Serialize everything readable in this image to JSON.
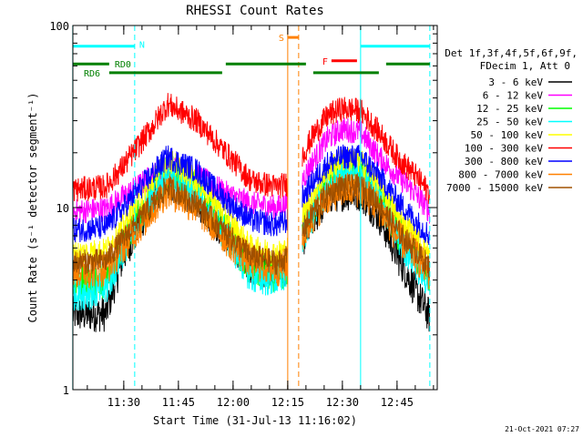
{
  "chart_data": {
    "type": "line",
    "title": "RHESSI Count Rates",
    "xlabel": "Start Time (31-Jul-13 11:16:02)",
    "ylabel": "Count Rate (s⁻¹ detector segment⁻¹)",
    "yscale": "log",
    "ylim": [
      1,
      100
    ],
    "xlim": [
      "11:16:02",
      "12:56:02"
    ],
    "x_ticks": [
      "11:30",
      "11:45",
      "12:00",
      "12:15",
      "12:30",
      "12:45"
    ],
    "y_tick_labels": [
      "1",
      "10",
      "100"
    ],
    "grid": false,
    "legend_placement": "right",
    "legend_header": [
      "Det 1f,3f,4f,5f,6f,9f,",
      "FDecim 1, Att 0"
    ],
    "footer_date": "21-Oct-2021 07:27",
    "series": [
      {
        "name": "3 - 6 keV",
        "color": "#000000",
        "x": [
          "11:16",
          "11:25",
          "11:30",
          "11:38",
          "11:42",
          "11:50",
          "11:58",
          "12:05",
          "12:12",
          "12:15",
          "12:22",
          "12:26",
          "12:30",
          "12:35",
          "12:40",
          "12:45",
          "12:50",
          "12:54"
        ],
        "y": [
          2.6,
          2.6,
          5.5,
          11,
          14,
          11,
          7,
          4.8,
          4.3,
          4.8,
          8.5,
          11.5,
          12,
          12,
          9,
          5.5,
          3.5,
          2.5
        ]
      },
      {
        "name": "6 - 12 keV",
        "color": "#ff00ff",
        "x": [
          "11:16",
          "11:25",
          "11:30",
          "11:38",
          "11:42",
          "11:50",
          "11:58",
          "12:05",
          "12:12",
          "12:15",
          "12:22",
          "12:26",
          "12:30",
          "12:35",
          "12:40",
          "12:45",
          "12:50",
          "12:54"
        ],
        "y": [
          9.5,
          9.8,
          11.5,
          15,
          17,
          15,
          12,
          10.5,
          10,
          10.5,
          18,
          24,
          27,
          26,
          19,
          15,
          12,
          9.5
        ]
      },
      {
        "name": "12 - 25 keV",
        "color": "#00ff00",
        "x": [
          "11:16",
          "11:25",
          "11:30",
          "11:38",
          "11:42",
          "11:50",
          "11:58",
          "12:05",
          "12:12",
          "12:15",
          "12:22",
          "12:26",
          "12:30",
          "12:35",
          "12:40",
          "12:45",
          "12:50",
          "12:54"
        ],
        "y": [
          3.8,
          4.0,
          6.5,
          12,
          16,
          12.5,
          7.5,
          4.5,
          4.3,
          4.6,
          10,
          14,
          16,
          16,
          12,
          7.5,
          5.5,
          4.0
        ]
      },
      {
        "name": "25 - 50 keV",
        "color": "#00ffff",
        "x": [
          "11:16",
          "11:25",
          "11:30",
          "11:38",
          "11:42",
          "11:50",
          "11:58",
          "12:05",
          "12:12",
          "12:15",
          "12:22",
          "12:26",
          "12:30",
          "12:35",
          "12:40",
          "12:45",
          "12:50",
          "12:54"
        ],
        "y": [
          3.4,
          3.5,
          6,
          11.5,
          15.5,
          12,
          7,
          4.2,
          4.0,
          4.3,
          9.5,
          13.5,
          15.5,
          15.5,
          11.5,
          7,
          5,
          3.8
        ]
      },
      {
        "name": "50 - 100 keV",
        "color": "#ffff00",
        "x": [
          "11:16",
          "11:25",
          "11:30",
          "11:38",
          "11:42",
          "11:50",
          "11:58",
          "12:05",
          "12:12",
          "12:15",
          "12:22",
          "12:26",
          "12:30",
          "12:35",
          "12:40",
          "12:45",
          "12:50",
          "12:54"
        ],
        "y": [
          5.6,
          5.8,
          8,
          14,
          18.5,
          14,
          9,
          6.0,
          5.6,
          6,
          12,
          16,
          18.5,
          18,
          13.5,
          9,
          7,
          5.5
        ]
      },
      {
        "name": "100 - 300 keV",
        "color": "#ff0000",
        "x": [
          "11:16",
          "11:25",
          "11:30",
          "11:38",
          "11:42",
          "11:50",
          "11:58",
          "12:05",
          "12:12",
          "12:15",
          "12:22",
          "12:26",
          "12:30",
          "12:35",
          "12:40",
          "12:45",
          "12:50",
          "12:54"
        ],
        "y": [
          12.5,
          13,
          17,
          28,
          37,
          30,
          20,
          14,
          13,
          13.5,
          25,
          32,
          35,
          34,
          26,
          19,
          15,
          12
        ]
      },
      {
        "name": "300 - 800 keV",
        "color": "#0000ff",
        "x": [
          "11:16",
          "11:25",
          "11:30",
          "11:38",
          "11:42",
          "11:50",
          "11:58",
          "12:05",
          "12:12",
          "12:15",
          "12:22",
          "12:26",
          "12:30",
          "12:35",
          "12:40",
          "12:45",
          "12:50",
          "12:54"
        ],
        "y": [
          7.5,
          7.8,
          10,
          15.5,
          19,
          16,
          11,
          8.5,
          8,
          8.5,
          14,
          17.5,
          19,
          19,
          15,
          11,
          8.5,
          7
        ]
      },
      {
        "name": "800 - 7000 keV",
        "color": "#ff8000",
        "x": [
          "11:16",
          "11:25",
          "11:30",
          "11:38",
          "11:42",
          "11:50",
          "11:58",
          "12:05",
          "12:12",
          "12:15",
          "12:22",
          "12:26",
          "12:30",
          "12:35",
          "12:40",
          "12:45",
          "12:50",
          "12:54"
        ],
        "y": [
          4.5,
          4.6,
          6.2,
          9.8,
          12.5,
          10,
          6.8,
          5.0,
          4.6,
          4.9,
          9,
          11.5,
          12.5,
          12.5,
          10,
          7,
          5.5,
          4.3
        ]
      },
      {
        "name": "7000 - 15000 keV",
        "color": "#a05000",
        "x": [
          "11:16",
          "11:25",
          "11:30",
          "11:38",
          "11:42",
          "11:50",
          "11:58",
          "12:05",
          "12:12",
          "12:15",
          "12:22",
          "12:26",
          "12:30",
          "12:35",
          "12:40",
          "12:45",
          "12:50",
          "12:54"
        ],
        "y": [
          5.0,
          5.1,
          6.8,
          10.5,
          13,
          10.5,
          7.2,
          5.4,
          5.0,
          5.3,
          9.5,
          12,
          13,
          13,
          10.5,
          7.5,
          5.8,
          4.7
        ]
      }
    ],
    "flag_bars": [
      {
        "label": "N",
        "color": "#00ffff",
        "y": 77,
        "spans": [
          [
            "11:16",
            "11:33"
          ],
          [
            "12:35",
            "12:54"
          ]
        ]
      },
      {
        "label": "S",
        "color": "#ff8000",
        "y": 86,
        "spans": [
          [
            "12:15",
            "12:18"
          ]
        ]
      },
      {
        "label": "F",
        "color": "#ff0000",
        "y": 64,
        "spans": [
          [
            "12:27",
            "12:34"
          ]
        ]
      },
      {
        "label": "RD0",
        "color": "#008000",
        "y": 61.5,
        "spans": [
          [
            "11:16",
            "11:26"
          ],
          [
            "11:58",
            "12:20"
          ],
          [
            "12:42",
            "12:54"
          ]
        ]
      },
      {
        "label": "RD6",
        "color": "#008000",
        "y": 55,
        "spans": [
          [
            "11:26",
            "11:57"
          ],
          [
            "12:22",
            "12:40"
          ]
        ]
      }
    ],
    "vertical_lines": [
      {
        "color": "#00ffff",
        "x": "11:16",
        "style": "solid"
      },
      {
        "color": "#00ffff",
        "x": "11:33",
        "style": "dash"
      },
      {
        "color": "#ff8000",
        "x": "12:15",
        "style": "solid"
      },
      {
        "color": "#ff8000",
        "x": "12:18",
        "style": "dash"
      },
      {
        "color": "#00ffff",
        "x": "12:35",
        "style": "solid"
      },
      {
        "color": "#00ffff",
        "x": "12:54",
        "style": "dash"
      }
    ]
  }
}
